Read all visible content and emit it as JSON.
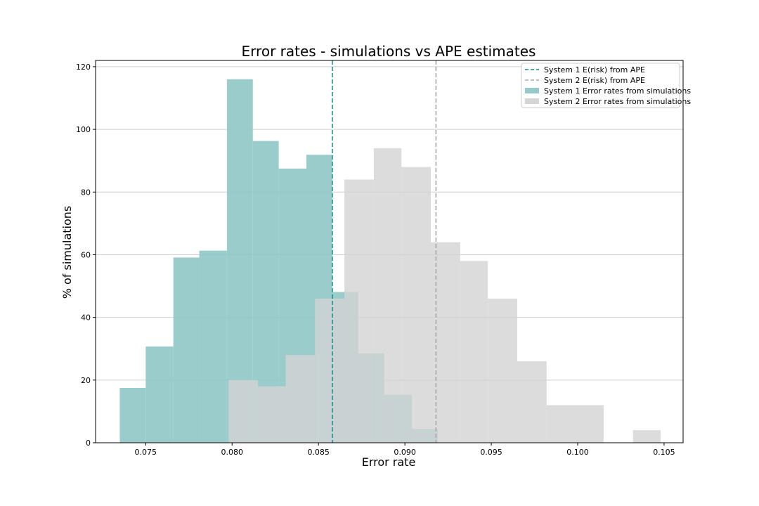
{
  "chart_data": {
    "type": "bar",
    "title": "Error rates - simulations vs APE estimates",
    "xlabel": "Error rate",
    "ylabel": "% of simulations",
    "xlim": [
      0.0721,
      0.1061
    ],
    "ylim": [
      0,
      122
    ],
    "xticks": [
      0.075,
      0.08,
      0.085,
      0.09,
      0.095,
      0.1,
      0.105
    ],
    "xtick_labels": [
      "0.075",
      "0.080",
      "0.085",
      "0.090",
      "0.095",
      "0.100",
      "0.105"
    ],
    "yticks": [
      0,
      20,
      40,
      60,
      80,
      100,
      120
    ],
    "ytick_labels": [
      "0",
      "20",
      "40",
      "60",
      "80",
      "100",
      "120"
    ],
    "grid": "horizontal",
    "legend_position": "top-right",
    "series": [
      {
        "name": "System 1 Error rates from simulations",
        "kind": "histogram",
        "color": "#8fc6c7",
        "opacity": 0.9,
        "bins": [
          {
            "x0": 0.0735,
            "x1": 0.075,
            "y": 17.5
          },
          {
            "x0": 0.075,
            "x1": 0.0766,
            "y": 30.7
          },
          {
            "x0": 0.0766,
            "x1": 0.0781,
            "y": 59.1
          },
          {
            "x0": 0.0781,
            "x1": 0.0797,
            "y": 61.3
          },
          {
            "x0": 0.0797,
            "x1": 0.0812,
            "y": 116.0
          },
          {
            "x0": 0.0812,
            "x1": 0.0827,
            "y": 96.3
          },
          {
            "x0": 0.0827,
            "x1": 0.0843,
            "y": 87.5
          },
          {
            "x0": 0.0843,
            "x1": 0.0858,
            "y": 91.9
          },
          {
            "x0": 0.0858,
            "x1": 0.0873,
            "y": 48.1
          },
          {
            "x0": 0.0873,
            "x1": 0.0888,
            "y": 28.5
          },
          {
            "x0": 0.0888,
            "x1": 0.0904,
            "y": 15.3
          },
          {
            "x0": 0.0904,
            "x1": 0.0919,
            "y": 4.4
          }
        ]
      },
      {
        "name": "System 2 Error rates from simulations",
        "kind": "histogram",
        "color": "#d3d3d3",
        "opacity": 0.8,
        "bins": [
          {
            "x0": 0.0798,
            "x1": 0.0815,
            "y": 20.0
          },
          {
            "x0": 0.0815,
            "x1": 0.0831,
            "y": 18.0
          },
          {
            "x0": 0.0831,
            "x1": 0.0848,
            "y": 28.0
          },
          {
            "x0": 0.0848,
            "x1": 0.0865,
            "y": 46.0
          },
          {
            "x0": 0.0865,
            "x1": 0.0882,
            "y": 84.0
          },
          {
            "x0": 0.0882,
            "x1": 0.0898,
            "y": 94.0
          },
          {
            "x0": 0.0898,
            "x1": 0.0915,
            "y": 88.0
          },
          {
            "x0": 0.0915,
            "x1": 0.0932,
            "y": 64.0
          },
          {
            "x0": 0.0932,
            "x1": 0.0948,
            "y": 58.0
          },
          {
            "x0": 0.0948,
            "x1": 0.0965,
            "y": 46.0
          },
          {
            "x0": 0.0965,
            "x1": 0.0982,
            "y": 26.0
          },
          {
            "x0": 0.0982,
            "x1": 0.0998,
            "y": 12.0
          },
          {
            "x0": 0.0998,
            "x1": 0.1015,
            "y": 12.0
          },
          {
            "x0": 0.1015,
            "x1": 0.1032,
            "y": 0.0
          },
          {
            "x0": 0.1032,
            "x1": 0.1048,
            "y": 4.0
          }
        ]
      }
    ],
    "reference_lines": [
      {
        "name": "System 1 E(risk) from APE",
        "x": 0.0858,
        "color": "#1a8a8c",
        "style": "dashed"
      },
      {
        "name": "System 2 E(risk) from APE",
        "x": 0.0918,
        "color": "#a9a9a9",
        "style": "dashed"
      }
    ],
    "legend": [
      {
        "label": "System 1 E(risk) from APE",
        "kind": "line",
        "color": "#1a8a8c"
      },
      {
        "label": "System 2 E(risk) from APE",
        "kind": "line",
        "color": "#a9a9a9"
      },
      {
        "label": "System 1 Error rates from simulations",
        "kind": "patch",
        "color": "#8fc6c7"
      },
      {
        "label": "System 2 Error rates from simulations",
        "kind": "patch",
        "color": "#d3d3d3"
      }
    ]
  }
}
